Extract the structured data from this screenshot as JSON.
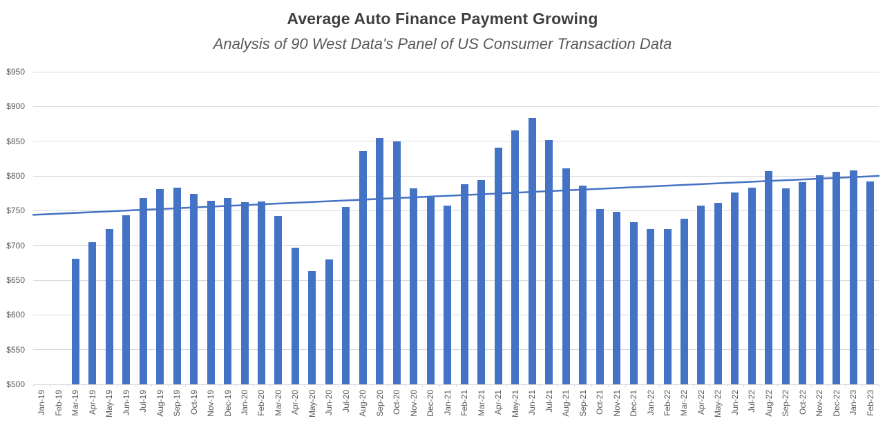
{
  "title": "Average Auto Finance Payment Growing",
  "subtitle": "Analysis of 90 West Data's Panel of US Consumer Transaction Data",
  "colors": {
    "bar": "#4472C4",
    "trendline": "#4472C4",
    "gridline": "#D9D9D9",
    "axis_text": "#595959",
    "title_text": "#404040",
    "subtitle_text": "#595959",
    "background": "#FFFFFF"
  },
  "chart_data": {
    "type": "bar",
    "title": "Average Auto Finance Payment Growing",
    "subtitle": "Analysis of 90 West Data's Panel of US Consumer Transaction Data",
    "xlabel": "",
    "ylabel": "",
    "ylim": [
      500,
      950
    ],
    "grid": true,
    "legend": false,
    "y_ticks": [
      {
        "value": 950,
        "label": "$950"
      },
      {
        "value": 900,
        "label": "$900"
      },
      {
        "value": 850,
        "label": "$850"
      },
      {
        "value": 800,
        "label": "$800"
      },
      {
        "value": 750,
        "label": "$750"
      },
      {
        "value": 700,
        "label": "$700"
      },
      {
        "value": 650,
        "label": "$650"
      },
      {
        "value": 600,
        "label": "$600"
      },
      {
        "value": 550,
        "label": "$550"
      },
      {
        "value": 500,
        "label": "$500"
      }
    ],
    "categories": [
      "Jan-19",
      "Feb-19",
      "Mar-19",
      "Apr-19",
      "May-19",
      "Jun-19",
      "Jul-19",
      "Aug-19",
      "Sep-19",
      "Oct-19",
      "Nov-19",
      "Dec-19",
      "Jan-20",
      "Feb-20",
      "Mar-20",
      "Apr-20",
      "May-20",
      "Jun-20",
      "Jul-20",
      "Aug-20",
      "Sep-20",
      "Oct-20",
      "Nov-20",
      "Dec-20",
      "Jan-21",
      "Feb-21",
      "Mar-21",
      "Apr-21",
      "May-21",
      "Jun-21",
      "Jul-21",
      "Aug-21",
      "Sep-21",
      "Oct-21",
      "Nov-21",
      "Dec-21",
      "Jan-22",
      "Feb-22",
      "Mar-22",
      "Apr-22",
      "May-22",
      "Jun-22",
      "Jul-22",
      "Aug-22",
      "Sep-22",
      "Oct-22",
      "Nov-22",
      "Dec-22",
      "Jan-23",
      "Feb-23"
    ],
    "values": [
      null,
      null,
      681,
      705,
      724,
      743,
      768,
      781,
      783,
      774,
      764,
      768,
      762,
      763,
      742,
      697,
      663,
      680,
      755,
      836,
      855,
      850,
      782,
      771,
      757,
      788,
      794,
      841,
      866,
      883,
      852,
      811,
      786,
      752,
      748,
      733,
      724,
      724,
      738,
      757,
      761,
      776,
      783,
      807,
      782,
      791,
      801,
      806,
      808,
      792
    ],
    "trendline": {
      "type": "linear",
      "start_value": 744,
      "end_value": 800
    }
  }
}
